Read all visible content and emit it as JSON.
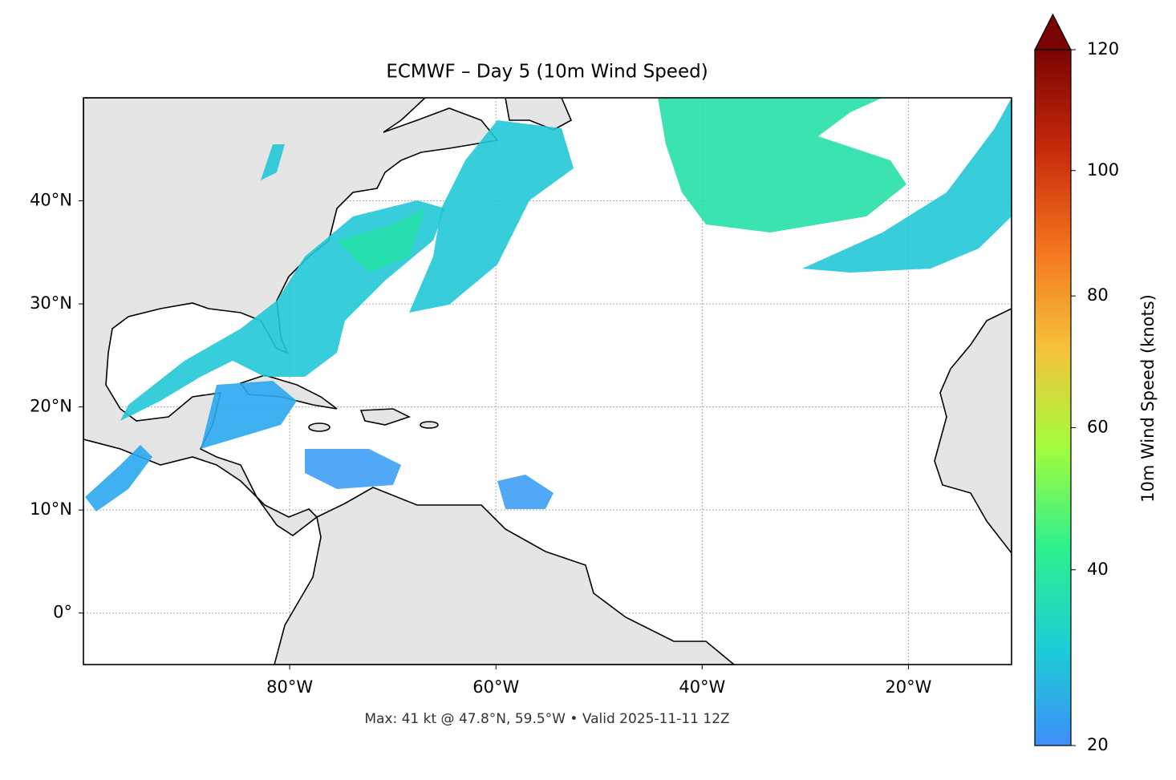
{
  "chart_data": {
    "type": "map",
    "title": "ECMWF – Day 5 (10m Wind Speed)",
    "footer": "Max: 41 kt @ 47.8°N, 59.5°W • Valid 2025-11-11 12Z",
    "xlim": [
      -100,
      -10
    ],
    "ylim": [
      -5,
      50
    ],
    "xticks": [
      {
        "value": -80,
        "label": "80°W"
      },
      {
        "value": -60,
        "label": "60°W"
      },
      {
        "value": -40,
        "label": "40°W"
      },
      {
        "value": -20,
        "label": "20°W"
      }
    ],
    "yticks": [
      {
        "value": 0,
        "label": "0°"
      },
      {
        "value": 10,
        "label": "10°N"
      },
      {
        "value": 20,
        "label": "20°N"
      },
      {
        "value": 30,
        "label": "30°N"
      },
      {
        "value": 40,
        "label": "40°N"
      }
    ],
    "grid": true,
    "colorbar": {
      "label": "10m Wind Speed (knots)",
      "lim": [
        20,
        120
      ],
      "ticks": [
        20,
        40,
        60,
        80,
        100,
        120
      ],
      "norm": "power",
      "gamma": 0.855,
      "extend": "max",
      "colors": [
        "#3d8ef7",
        "#1bcfd4",
        "#2ef08c",
        "#a4fc3c",
        "#f5c23a",
        "#f4741e",
        "#c7290a",
        "#7a0403"
      ]
    }
  }
}
